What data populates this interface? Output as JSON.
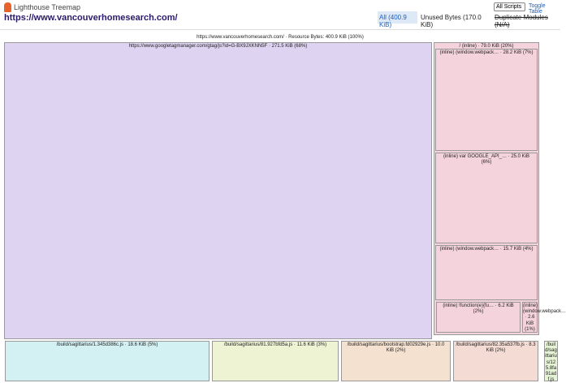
{
  "header": {
    "app_title": "Lighthouse Treemap",
    "url": "https://www.vancouverhomesearch.com/",
    "select": "All Scripts",
    "toggle": "Toggle Table",
    "modes": [
      "All (400.9 KiB)",
      "Unused Bytes (170.0 KiB)",
      "Duplicate Modules (N/A)"
    ]
  },
  "treemap": {
    "title": "https://www.vancouverhomesearch.com/ · Resource Bytes: 400.9 KiB (100%)",
    "nodes": [
      {
        "label": "https://www.googletagmanager.com/gtag/js?id=G-BX9JXKNN5F · 271.5 KiB (68%)"
      },
      {
        "label": "/ (inline) · 79.0 KiB (20%)",
        "children": [
          {
            "label": "(inline) (window.webpack… · 28.2 KiB (7%)"
          },
          {
            "label": "(inline) var GOOGLE_API_… · 25.0 KiB (6%)"
          },
          {
            "label": "(inline) (window.webpack… · 15.7 KiB (4%)"
          },
          {
            "label": "(inline) !function(e){fu… · 6.2 KiB (2%)"
          },
          {
            "label": "(inline) (window.webpack… · 2.6 KiB (1%)"
          }
        ]
      },
      {
        "label": "/build/sagittarius/1.345d386c.js · 18.6 KiB (5%)"
      },
      {
        "label": "/build/sagittarius/81.927bfd5a.js · 11.6 KiB (3%)"
      },
      {
        "label": "/build/sagittarius/bootstrap.fd02929e.js · 10.0 KiB (2%)"
      },
      {
        "label": "/build/sagittarius/82.35a537fb.js · 8.3 KiB (2%)"
      },
      {
        "label": "/build/sagittarius/125.8fa91adf.js"
      }
    ]
  }
}
